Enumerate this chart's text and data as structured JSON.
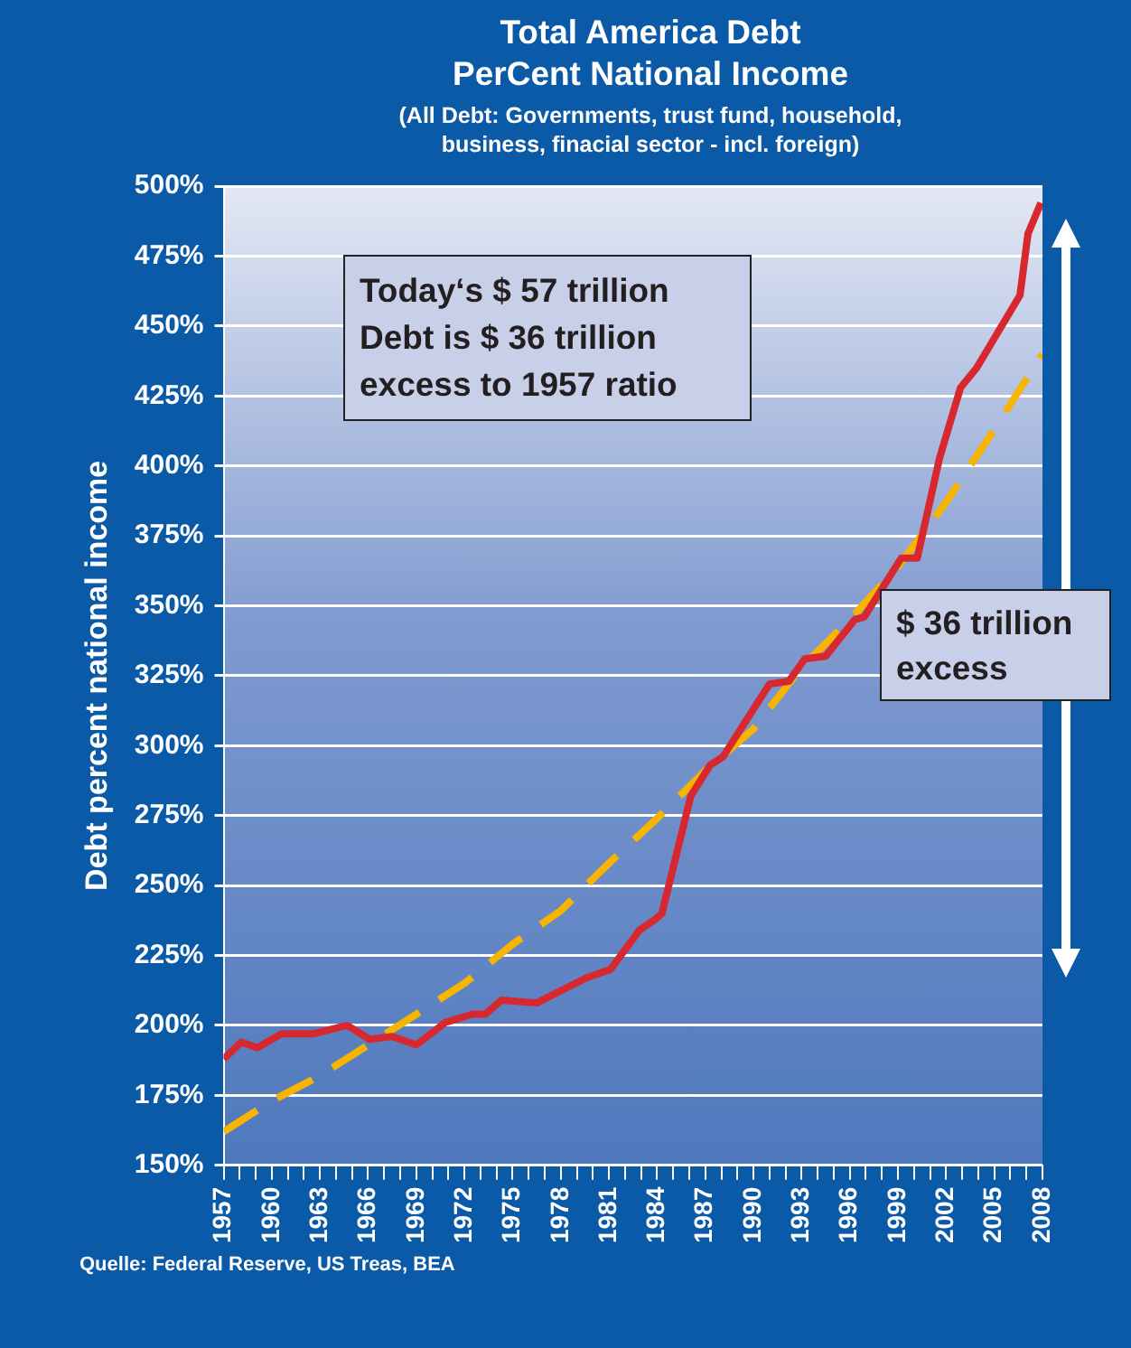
{
  "chart_data": {
    "type": "line",
    "title": "Total America Debt\nPerCent National Income",
    "subtitle": "(All Debt: Governments, trust fund, household,\nbusiness, finacial sector - incl. foreign)",
    "ylabel": "Debt percent national income",
    "annotations": [
      "Today‘s $ 57 trillion\nDebt is $ 36 trillion\nexcess to 1957 ratio",
      "$ 36 trillion\nexcess",
      "Quelle: Federal Reserve, US Treas, BEA"
    ],
    "series": [
      {
        "type": "line",
        "color": "#d7282f",
        "line_style": "solid",
        "x": [
          1957,
          1958.1,
          1959.1,
          1960.6,
          1962.6,
          1964.7,
          1966.1,
          1967.5,
          1969,
          1970.8,
          1972.5,
          1973.3,
          1974.3,
          1976.5,
          1979.6,
          1981.1,
          1982.9,
          1983.9,
          1984.3,
          1986.1,
          1987.3,
          1988.1,
          1991,
          1992.2,
          1993.2,
          1994.5,
          1996.3,
          1996.9,
          1999.2,
          2000.2,
          2001.6,
          2002.9,
          2003.9,
          2006.6,
          2007.1,
          2007.9
        ],
        "values": [
          188,
          194,
          192,
          197,
          197,
          200,
          195,
          196,
          193,
          201,
          204,
          204,
          209,
          208,
          217,
          220,
          234,
          238,
          240,
          282,
          293,
          296,
          322,
          323,
          331,
          332,
          345,
          346,
          367,
          367,
          403,
          428,
          435,
          461,
          483,
          494
        ]
      },
      {
        "type": "line",
        "color": "#f7b500",
        "line_style": "dashed",
        "x": [
          1957,
          1960,
          1963,
          1966,
          1969,
          1972,
          1975,
          1978,
          1981,
          1984,
          1987,
          1990,
          1993,
          1996,
          1999,
          2002,
          2005,
          2008
        ],
        "values": [
          162,
          173,
          182,
          193,
          204,
          215,
          229,
          241,
          258,
          274,
          291,
          306,
          328,
          345,
          364,
          387,
          413,
          440
        ]
      }
    ],
    "xlim": [
      1957,
      2008
    ],
    "xticks": [
      1957,
      {
        "value": 1958,
        "label": null
      },
      {
        "value": 1959,
        "label": null
      },
      1960,
      {
        "value": 1961,
        "label": null
      },
      {
        "value": 1962,
        "label": null
      },
      1963,
      {
        "value": 1964,
        "label": null
      },
      {
        "value": 1965,
        "label": null
      },
      1966,
      {
        "value": 1967,
        "label": null
      },
      {
        "value": 1968,
        "label": null
      },
      1969,
      {
        "value": 1970,
        "label": null
      },
      {
        "value": 1971,
        "label": null
      },
      1972,
      {
        "value": 1973,
        "label": null
      },
      {
        "value": 1974,
        "label": null
      },
      1975,
      {
        "value": 1976,
        "label": null
      },
      {
        "value": 1977,
        "label": null
      },
      1978,
      {
        "value": 1979,
        "label": null
      },
      {
        "value": 1980,
        "label": null
      },
      1981,
      {
        "value": 1982,
        "label": null
      },
      {
        "value": 1983,
        "label": null
      },
      1984,
      {
        "value": 1985,
        "label": null
      },
      {
        "value": 1986,
        "label": null
      },
      1987,
      {
        "value": 1988,
        "label": null
      },
      {
        "value": 1989,
        "label": null
      },
      1990,
      {
        "value": 1991,
        "label": null
      },
      {
        "value": 1992,
        "label": null
      },
      1993,
      {
        "value": 1994,
        "label": null
      },
      {
        "value": 1995,
        "label": null
      },
      1996,
      {
        "value": 1997,
        "label": null
      },
      {
        "value": 1998,
        "label": null
      },
      1999,
      {
        "value": 2000,
        "label": null
      },
      {
        "value": 2001,
        "label": null
      },
      2002,
      {
        "value": 2003,
        "label": null
      },
      {
        "value": 2004,
        "label": null
      },
      2005,
      {
        "value": 2006,
        "label": null
      },
      {
        "value": 2007,
        "label": null
      },
      2008
    ],
    "ylim": [
      150,
      500
    ],
    "yticks": [
      {
        "value": 150,
        "label": "150%"
      },
      {
        "value": 175,
        "label": "175%"
      },
      {
        "value": 200,
        "label": "200%"
      },
      {
        "value": 225,
        "label": "225%"
      },
      {
        "value": 250,
        "label": "250%"
      },
      {
        "value": 275,
        "label": "275%"
      },
      {
        "value": 300,
        "label": "300%"
      },
      {
        "value": 325,
        "label": "325%"
      },
      {
        "value": 350,
        "label": "350%"
      },
      {
        "value": 375,
        "label": "375%"
      },
      {
        "value": 400,
        "label": "400%"
      },
      {
        "value": 425,
        "label": "425%"
      },
      {
        "value": 450,
        "label": "450%"
      },
      {
        "value": 475,
        "label": "475%"
      },
      {
        "value": 500,
        "label": "500%"
      }
    ],
    "grid": "y",
    "legend": false,
    "marker": "none"
  }
}
